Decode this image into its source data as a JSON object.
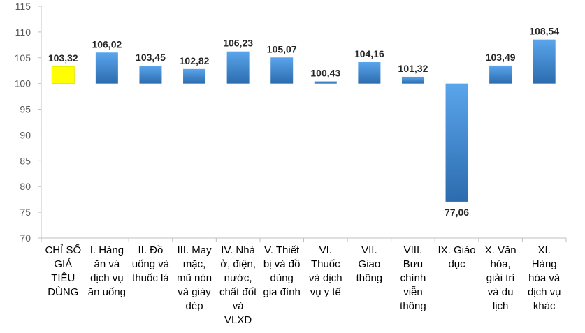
{
  "chart_data": {
    "type": "bar",
    "baseline": 100,
    "ylim": [
      70,
      115
    ],
    "yticks": [
      70,
      75,
      80,
      85,
      90,
      95,
      100,
      105,
      110,
      115
    ],
    "grid": false,
    "categories": [
      [
        "CHỈ SỐ",
        "GIÁ",
        "TIÊU",
        "DÙNG"
      ],
      [
        "I. Hàng",
        "ăn và",
        "dịch vụ",
        "ăn uống"
      ],
      [
        "II. Đồ",
        "uống và",
        "thuốc lá"
      ],
      [
        "III. May",
        "mặc,",
        "mũ nón",
        "và giày",
        "dép"
      ],
      [
        "IV. Nhà",
        "ở, điện,",
        "nước,",
        "chất đốt",
        "và",
        "VLXD"
      ],
      [
        "V. Thiết",
        "bị và đồ",
        "dùng",
        "gia đình"
      ],
      [
        "VI.",
        "Thuốc",
        "và dịch",
        "vụ y tế"
      ],
      [
        "VII.",
        "Giao",
        "thông"
      ],
      [
        "VIII.",
        "Bưu",
        "chính",
        "viễn",
        "thông"
      ],
      [
        "IX. Giáo",
        "dục"
      ],
      [
        "X. Văn",
        "hóa,",
        "giải trí",
        "và du",
        "lịch"
      ],
      [
        "XI.",
        "Hàng",
        "hóa và",
        "dịch vụ",
        "khác"
      ]
    ],
    "values": [
      103.32,
      106.02,
      103.45,
      102.82,
      106.23,
      105.07,
      100.43,
      104.16,
      101.32,
      77.06,
      103.49,
      108.54
    ],
    "value_labels": [
      "103,32",
      "106,02",
      "103,45",
      "102,82",
      "106,23",
      "105,07",
      "100,43",
      "104,16",
      "101,32",
      "77,06",
      "103,49",
      "108,54"
    ],
    "colors": {
      "highlight": "#ffff00",
      "bar_top": "#4f9be6",
      "bar_bottom": "#2d6fb3",
      "axis": "#bfbfbf"
    },
    "highlight_index": 0
  }
}
